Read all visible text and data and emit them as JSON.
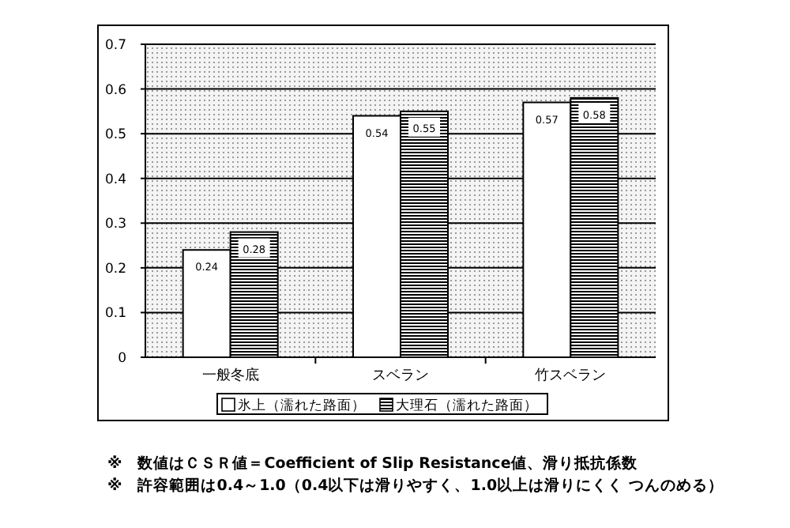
{
  "chart_data": {
    "type": "bar",
    "categories": [
      "一般冬底",
      "スベラン",
      "竹スベラン"
    ],
    "series": [
      {
        "name": "氷上（濡れた路面）",
        "color": "#ffffff",
        "values": [
          0.24,
          0.54,
          0.57
        ]
      },
      {
        "name": "大理石（濡れた路面）",
        "color": "#000000",
        "values": [
          0.28,
          0.55,
          0.58
        ]
      }
    ],
    "ylim": [
      0,
      0.7
    ],
    "yticks": [
      0,
      0.1,
      0.2,
      0.3,
      0.4,
      0.5,
      0.6,
      0.7
    ],
    "grid": "y",
    "legend": "bottom",
    "data_labels": true,
    "annotations": [
      "※　数値はＣＳＲ値＝Coefficient of Slip Resistance値、滑り抵抗係数",
      "※　許容範囲は0.4～1.0（0.4以下は滑りやすく、1.0以上は滑りにくく つんのめる）"
    ]
  }
}
